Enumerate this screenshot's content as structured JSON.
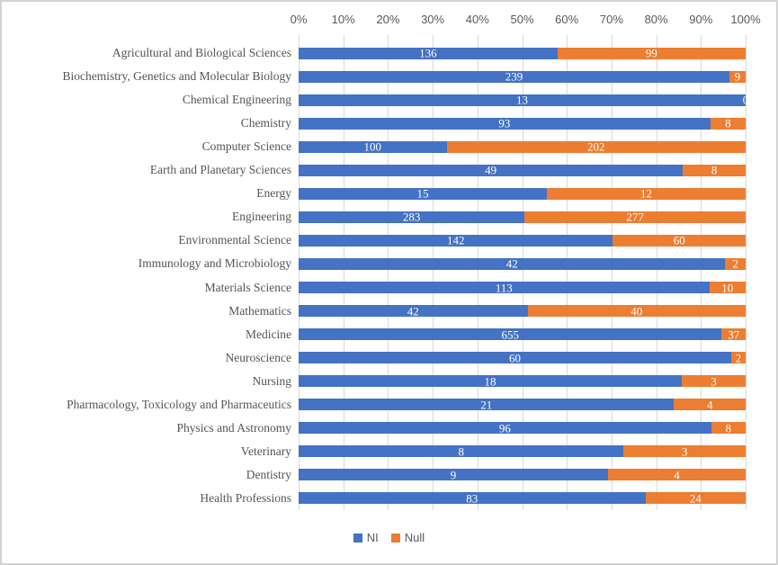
{
  "chart_data": {
    "type": "bar",
    "orientation": "horizontal",
    "stacked": true,
    "percent_stacked": true,
    "title": "",
    "categories": [
      "Agricultural and Biological Sciences",
      "Biochemistry, Genetics and Molecular Biology",
      "Chemical Engineering",
      "Chemistry",
      "Computer Science",
      "Earth and Planetary Sciences",
      "Energy",
      "Engineering",
      "Environmental Science",
      "Immunology and Microbiology",
      "Materials Science",
      "Mathematics",
      "Medicine",
      "Neuroscience",
      "Nursing",
      "Pharmacology, Toxicology and Pharmaceutics",
      "Physics and Astronomy",
      "Veterinary",
      "Dentistry",
      "Health Professions"
    ],
    "series": [
      {
        "name": "NI",
        "color": "#4472C4",
        "values": [
          136,
          239,
          13,
          93,
          100,
          49,
          15,
          283,
          142,
          42,
          113,
          42,
          655,
          60,
          18,
          21,
          96,
          8,
          9,
          83
        ]
      },
      {
        "name": "Null",
        "color": "#ED7D31",
        "values": [
          99,
          9,
          0,
          8,
          202,
          8,
          12,
          277,
          60,
          2,
          10,
          40,
          37,
          2,
          3,
          4,
          8,
          3,
          4,
          24
        ]
      }
    ],
    "x_axis": {
      "position": "top",
      "min": 0,
      "max": 1,
      "tick_labels": [
        "0%",
        "10%",
        "20%",
        "30%",
        "40%",
        "50%",
        "60%",
        "70%",
        "80%",
        "90%",
        "100%"
      ]
    },
    "legend": {
      "position": "bottom",
      "entries": [
        "NI",
        "Null"
      ]
    },
    "grid": true,
    "data_labels": "values-inside-white"
  },
  "colors": {
    "ni": "#4472C4",
    "null": "#ED7D31",
    "gridline": "#d9d9d9",
    "axis_text": "#595959",
    "chart_border": "#d2d2d2",
    "background": "#ffffff"
  }
}
